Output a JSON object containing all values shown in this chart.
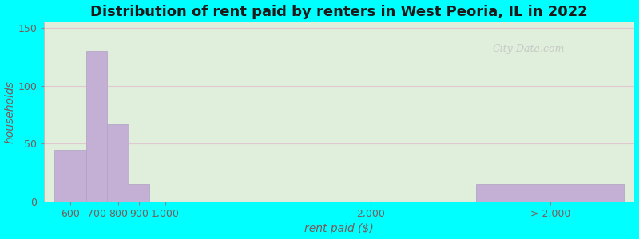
{
  "title": "Distribution of rent paid by renters in West Peoria, IL in 2022",
  "xlabel": "rent paid ($)",
  "ylabel": "households",
  "bar_color": "#c4b0d5",
  "bar_edge_color": "#b0a0c5",
  "ylim": [
    0,
    155
  ],
  "yticks": [
    0,
    50,
    100,
    150
  ],
  "background_color": "#00ffff",
  "plot_bg_left": "#d0e8c8",
  "plot_bg_right": "#f0f0e8",
  "title_fontsize": 13,
  "axis_label_fontsize": 10,
  "tick_fontsize": 9,
  "grid_color": "#e0c8d0",
  "watermark_text": "City-Data.com",
  "bars": [
    {
      "label": "600",
      "x_left": 500,
      "x_right": 650,
      "height": 45
    },
    {
      "label": "700",
      "x_left": 650,
      "x_right": 750,
      "height": 130
    },
    {
      "label": "800",
      "x_left": 750,
      "x_right": 850,
      "height": 67
    },
    {
      "label": "900",
      "x_left": 850,
      "x_right": 950,
      "height": 15
    },
    {
      "label": "1,000",
      "x_left": 950,
      "x_right": 1100,
      "height": 0
    },
    {
      "label": "2,000",
      "x_left": 1100,
      "x_right": 2500,
      "height": 0
    },
    {
      "label": "> 2,000",
      "x_left": 2500,
      "x_right": 3200,
      "height": 15
    }
  ],
  "xtick_positions": [
    575,
    700,
    800,
    900,
    1025,
    2000,
    2850
  ],
  "xtick_labels": [
    "600",
    "700",
    "800",
    "900",
    "1,000",
    "2,000",
    "> 2,000"
  ],
  "xlim": [
    450,
    3250
  ]
}
